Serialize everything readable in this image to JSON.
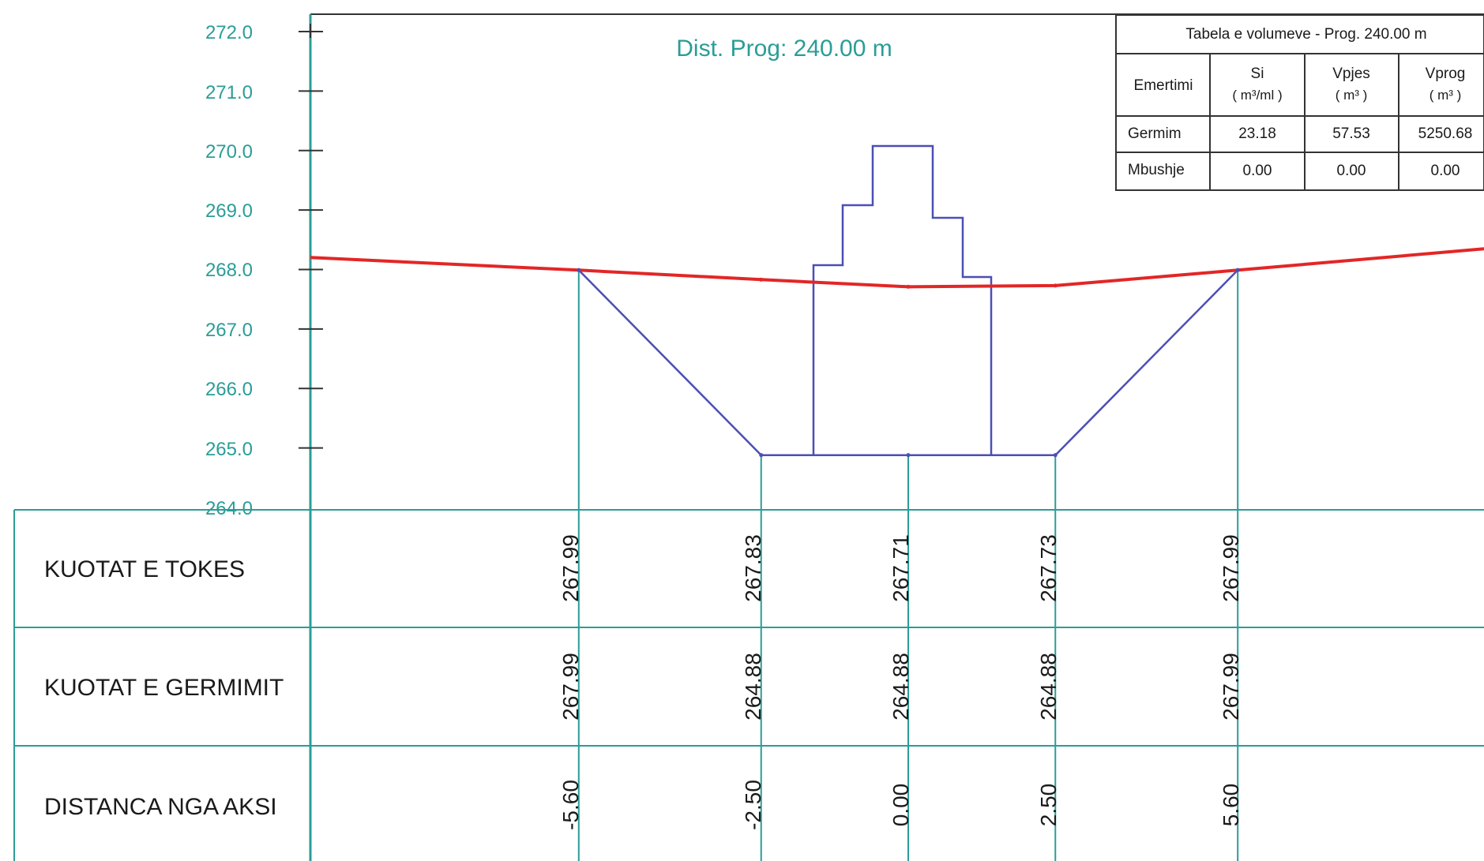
{
  "title": "Dist. Prog: 240.00 m",
  "colors": {
    "accent": "#2a9d97",
    "ground_line": "#e32626",
    "section_line": "#4b4fb5",
    "grid": "#2a9d97",
    "text": "#1a1a1a"
  },
  "elevation_axis": {
    "labels": [
      "272.0",
      "271.0",
      "270.0",
      "269.0",
      "268.0",
      "267.0",
      "266.0",
      "265.0",
      "264.0"
    ],
    "min": 264.0,
    "max": 272.0
  },
  "volume_table": {
    "caption": "Tabela e volumeve - Prog. 240.00 m",
    "headers": [
      {
        "name": "Emertimi",
        "unit": ""
      },
      {
        "name": "Si",
        "unit": "( m³/ml )"
      },
      {
        "name": "Vpjes",
        "unit": "( m³ )"
      },
      {
        "name": "Vprog",
        "unit": "( m³ )"
      }
    ],
    "rows": [
      [
        "Germim",
        "23.18",
        "57.53",
        "5250.68"
      ],
      [
        "Mbushje",
        "0.00",
        "0.00",
        "0.00"
      ]
    ]
  },
  "profile_table": {
    "row_labels": [
      "KUOTAT E TOKES",
      "KUOTAT E GERMIMIT",
      "DISTANCA NGA AKSI"
    ],
    "columns": [
      {
        "tokes": "267.99",
        "germimit": "267.99",
        "distanca": "-5.60"
      },
      {
        "tokes": "267.83",
        "germimit": "264.88",
        "distanca": "-2.50"
      },
      {
        "tokes": "267.71",
        "germimit": "264.88",
        "distanca": "0.00"
      },
      {
        "tokes": "267.73",
        "germimit": "264.88",
        "distanca": "2.50"
      },
      {
        "tokes": "267.99",
        "germimit": "267.99",
        "distanca": "5.60"
      }
    ]
  },
  "chart_data": {
    "type": "line",
    "title": "Dist. Prog: 240.00 m",
    "ylim": [
      264.0,
      272.0
    ],
    "y_tick_labels": [
      "272.0",
      "271.0",
      "270.0",
      "269.0",
      "268.0",
      "267.0",
      "266.0",
      "265.0",
      "264.0"
    ],
    "series": [
      {
        "name": "KUOTAT E TOKES",
        "x": [
          -5.6,
          -2.5,
          0.0,
          2.5,
          5.6
        ],
        "y": [
          267.99,
          267.83,
          267.71,
          267.73,
          267.99
        ]
      },
      {
        "name": "KUOTAT E GERMIMIT",
        "x": [
          -5.6,
          -2.5,
          0.0,
          2.5,
          5.6
        ],
        "y": [
          267.99,
          264.88,
          264.88,
          264.88,
          267.99
        ]
      }
    ]
  }
}
